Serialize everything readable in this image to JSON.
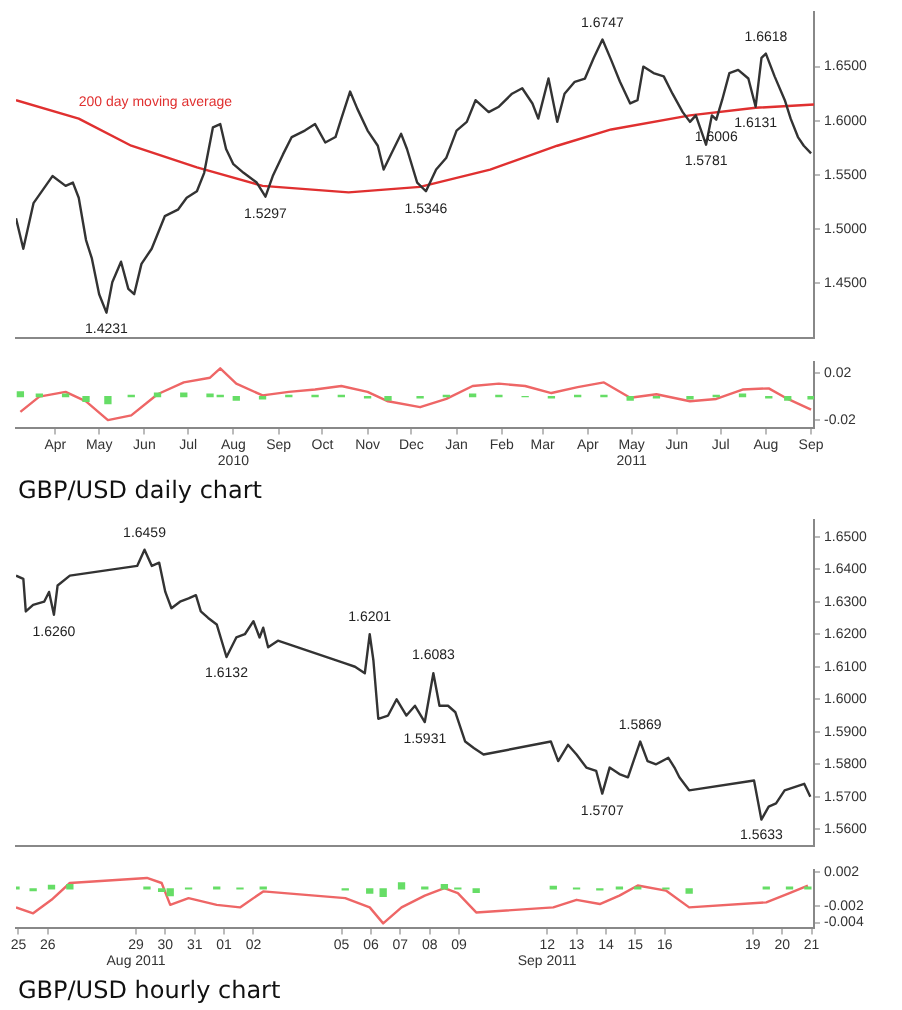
{
  "chart_data": [
    {
      "type": "line",
      "xlim": [
        "2010-03-19",
        "2011-09-17"
      ],
      "ylim": [
        1.4,
        1.7
      ],
      "tick_labels": "y",
      "yticks": [
        {
          "value": 1.45,
          "label": "1.4500"
        },
        {
          "value": 1.5,
          "label": "1.5000"
        },
        {
          "value": 1.55,
          "label": "1.5500"
        },
        {
          "value": 1.6,
          "label": "1.6000"
        },
        {
          "value": 1.65,
          "label": "1.6500"
        }
      ],
      "series": [
        {
          "color": "#333333",
          "x": [
            "2010-03-19",
            "2010-03-24",
            "2010-03-31",
            "2010-04-13",
            "2010-04-22",
            "2010-04-27",
            "2010-05-01",
            "2010-05-06",
            "2010-05-10",
            "2010-05-15",
            "2010-05-20",
            "2010-05-24",
            "2010-05-30",
            "2010-06-04",
            "2010-06-08",
            "2010-06-13",
            "2010-06-20",
            "2010-06-29",
            "2010-07-08",
            "2010-07-14",
            "2010-07-21",
            "2010-07-26",
            "2010-08-01",
            "2010-08-06",
            "2010-08-10",
            "2010-08-15",
            "2010-08-22",
            "2010-08-31",
            "2010-09-06",
            "2010-09-11",
            "2010-09-18",
            "2010-09-24",
            "2010-10-03",
            "2010-10-10",
            "2010-10-17",
            "2010-10-24",
            "2010-10-28",
            "2010-11-03",
            "2010-11-08",
            "2010-11-15",
            "2010-11-22",
            "2010-11-26",
            "2010-12-01",
            "2010-12-08",
            "2010-12-12",
            "2010-12-19",
            "2010-12-25",
            "2011-01-01",
            "2011-01-08",
            "2011-01-15",
            "2011-01-22",
            "2011-01-28",
            "2011-02-06",
            "2011-02-13",
            "2011-02-22",
            "2011-03-01",
            "2011-03-08",
            "2011-03-12",
            "2011-03-19",
            "2011-03-25",
            "2011-03-30",
            "2011-04-06",
            "2011-04-13",
            "2011-04-19",
            "2011-04-25",
            "2011-05-01",
            "2011-05-07",
            "2011-05-14",
            "2011-05-19",
            "2011-05-23",
            "2011-05-30",
            "2011-06-06",
            "2011-06-12",
            "2011-06-19",
            "2011-06-24",
            "2011-06-28",
            "2011-07-05",
            "2011-07-09",
            "2011-07-12",
            "2011-07-16",
            "2011-07-21",
            "2011-07-27",
            "2011-08-03",
            "2011-08-08",
            "2011-08-12",
            "2011-08-15",
            "2011-08-21",
            "2011-08-28",
            "2011-09-01",
            "2011-09-06",
            "2011-09-10",
            "2011-09-15"
          ],
          "values": [
            1.51,
            1.482,
            1.524,
            1.549,
            1.54,
            1.543,
            1.529,
            1.49,
            1.473,
            1.44,
            1.423,
            1.451,
            1.47,
            1.445,
            1.44,
            1.468,
            1.482,
            1.512,
            1.518,
            1.529,
            1.535,
            1.552,
            1.594,
            1.597,
            1.574,
            1.56,
            1.552,
            1.543,
            1.53,
            1.549,
            1.569,
            1.585,
            1.591,
            1.597,
            1.58,
            1.585,
            1.602,
            1.627,
            1.611,
            1.591,
            1.577,
            1.555,
            1.569,
            1.588,
            1.574,
            1.543,
            1.535,
            1.555,
            1.566,
            1.591,
            1.599,
            1.619,
            1.608,
            1.613,
            1.625,
            1.63,
            1.616,
            1.602,
            1.639,
            1.599,
            1.625,
            1.636,
            1.639,
            1.658,
            1.675,
            1.656,
            1.636,
            1.616,
            1.619,
            1.65,
            1.644,
            1.641,
            1.625,
            1.608,
            1.599,
            1.605,
            1.578,
            1.605,
            1.601,
            1.619,
            1.644,
            1.647,
            1.639,
            1.613,
            1.658,
            1.662,
            1.641,
            1.619,
            1.602,
            1.585,
            1.577,
            1.57
          ]
        },
        {
          "name": "200 day moving average",
          "color": "#e03030",
          "x": [
            "2010-03-19",
            "2010-05-01",
            "2010-06-06",
            "2010-07-21",
            "2010-09-04",
            "2010-11-02",
            "2010-12-21",
            "2011-02-07",
            "2011-03-25",
            "2011-05-01",
            "2011-06-24",
            "2011-08-08",
            "2011-09-17"
          ],
          "values": [
            1.619,
            1.602,
            1.577,
            1.557,
            1.54,
            1.534,
            1.539,
            1.555,
            1.577,
            1.592,
            1.605,
            1.612,
            1.615
          ]
        }
      ],
      "annotations": [
        {
          "text": "1.4231",
          "x": "2010-05-20",
          "y": 1.4231
        },
        {
          "text": "1.5297",
          "x": "2010-09-06",
          "y": 1.5297
        },
        {
          "text": "1.5346",
          "x": "2010-12-25",
          "y": 1.5346
        },
        {
          "text": "1.6747",
          "x": "2011-04-25",
          "y": 1.6747
        },
        {
          "text": "1.5781",
          "x": "2011-07-05",
          "y": 1.5781
        },
        {
          "text": "1.6006",
          "x": "2011-07-12",
          "y": 1.6006
        },
        {
          "text": "1.6131",
          "x": "2011-08-08",
          "y": 1.6131
        },
        {
          "text": "1.6618",
          "x": "2011-08-15",
          "y": 1.6618
        }
      ]
    },
    {
      "type": "line",
      "title": "GBP/USD daily chart",
      "xlim": [
        "2010-03-19",
        "2011-09-17"
      ],
      "ylim": [
        -0.027,
        0.029
      ],
      "xticks": [
        {
          "value": "2010-04-15",
          "label": "Apr"
        },
        {
          "value": "2010-05-15",
          "label": "May"
        },
        {
          "value": "2010-06-15",
          "label": "Jun"
        },
        {
          "value": "2010-07-15",
          "label": "Jul"
        },
        {
          "value": "2010-08-15",
          "label": "Aug\n2010"
        },
        {
          "value": "2010-09-15",
          "label": "Sep"
        },
        {
          "value": "2010-10-15",
          "label": "Oct"
        },
        {
          "value": "2010-11-15",
          "label": "Nov"
        },
        {
          "value": "2010-12-15",
          "label": "Dec"
        },
        {
          "value": "2011-01-15",
          "label": "Jan"
        },
        {
          "value": "2011-02-15",
          "label": "Feb"
        },
        {
          "value": "2011-03-15",
          "label": "Mar"
        },
        {
          "value": "2011-04-15",
          "label": "Apr"
        },
        {
          "value": "2011-05-15",
          "label": "May\n2011"
        },
        {
          "value": "2011-06-15",
          "label": "Jun"
        },
        {
          "value": "2011-07-15",
          "label": "Jul"
        },
        {
          "value": "2011-08-15",
          "label": "Aug"
        },
        {
          "value": "2011-09-15",
          "label": "Sep"
        }
      ],
      "yticks": [
        0.02,
        -0.02
      ],
      "series": [
        {
          "type": "bar",
          "color": "#66dd66",
          "x": [
            "2010-03-22",
            "2010-04-04",
            "2010-04-22",
            "2010-05-06",
            "2010-05-21",
            "2010-06-06",
            "2010-06-24",
            "2010-07-12",
            "2010-07-30",
            "2010-08-06",
            "2010-08-17",
            "2010-09-04",
            "2010-09-22",
            "2010-10-10",
            "2010-10-28",
            "2010-11-15",
            "2010-11-29",
            "2010-12-21",
            "2011-01-08",
            "2011-01-26",
            "2011-02-13",
            "2011-03-03",
            "2011-03-21",
            "2011-04-08",
            "2011-04-26",
            "2011-05-14",
            "2011-06-01",
            "2011-06-24",
            "2011-07-12",
            "2011-07-30",
            "2011-08-17",
            "2011-08-30",
            "2011-09-15"
          ],
          "values": [
            0.004,
            0.002,
            0.002,
            -0.004,
            -0.006,
            0.001,
            0.003,
            0.003,
            0.002,
            0.001,
            -0.003,
            -0.002,
            0.001,
            0.001,
            0.001,
            -0.001,
            -0.003,
            -0.001,
            0.001,
            0.002,
            0.001,
            0,
            -0.001,
            0.001,
            0.001,
            -0.003,
            -0.001,
            -0.002,
            0.001,
            0.002,
            -0.001,
            -0.003,
            -0.002
          ]
        },
        {
          "color": "#ee6666",
          "x": [
            "2010-03-22",
            "2010-04-04",
            "2010-04-22",
            "2010-05-06",
            "2010-05-21",
            "2010-06-06",
            "2010-06-24",
            "2010-07-12",
            "2010-07-30",
            "2010-08-06",
            "2010-08-17",
            "2010-09-04",
            "2010-09-22",
            "2010-10-10",
            "2010-10-28",
            "2010-11-15",
            "2010-11-29",
            "2010-12-21",
            "2011-01-08",
            "2011-01-26",
            "2011-02-13",
            "2011-03-03",
            "2011-03-21",
            "2011-04-08",
            "2011-04-26",
            "2011-05-14",
            "2011-06-01",
            "2011-06-24",
            "2011-07-12",
            "2011-07-30",
            "2011-08-17",
            "2011-08-30",
            "2011-09-15"
          ],
          "values": [
            -0.013,
            0,
            0.004,
            -0.004,
            -0.02,
            -0.016,
            0.002,
            0.012,
            0.016,
            0.024,
            0.011,
            0.001,
            0.004,
            0.006,
            0.009,
            0.004,
            -0.004,
            -0.009,
            -0.002,
            0.009,
            0.011,
            0.009,
            0.003,
            0.008,
            0.012,
            -0.001,
            0.002,
            -0.004,
            -0.002,
            0.006,
            0.007,
            -0.002,
            -0.011
          ]
        }
      ]
    },
    {
      "type": "line",
      "xlim": [
        "2011-08-24T22:00",
        "2011-09-21T02:00"
      ],
      "ylim": [
        1.555,
        1.655
      ],
      "tick_labels": "y",
      "yticks": [
        {
          "value": 1.56,
          "label": "1.5600"
        },
        {
          "value": 1.57,
          "label": "1.5700"
        },
        {
          "value": 1.58,
          "label": "1.5800"
        },
        {
          "value": 1.59,
          "label": "1.5900"
        },
        {
          "value": 1.6,
          "label": "1.6000"
        },
        {
          "value": 1.61,
          "label": "1.6100"
        },
        {
          "value": 1.62,
          "label": "1.6200"
        },
        {
          "value": 1.63,
          "label": "1.6300"
        },
        {
          "value": 1.64,
          "label": "1.6400"
        },
        {
          "value": 1.65,
          "label": "1.6500"
        }
      ],
      "series": [
        {
          "color": "#333333",
          "x": [
            "2011-08-24T22:00",
            "2011-08-25T04:00",
            "2011-08-25T06:00",
            "2011-08-25T12:00",
            "2011-08-25T21:00",
            "2011-08-26T01:00",
            "2011-08-26T05:00",
            "2011-08-26T08:00",
            "2011-08-26T18:00",
            "2011-08-29T01:00",
            "2011-08-29T07:00",
            "2011-08-29T13:00",
            "2011-08-29T19:00",
            "2011-08-30T00:00",
            "2011-08-30T05:00",
            "2011-08-30T12:00",
            "2011-08-30T19:00",
            "2011-08-31T01:00",
            "2011-08-31T05:00",
            "2011-08-31T11:00",
            "2011-08-31T18:00",
            "2011-09-01T02:00",
            "2011-09-01T10:00",
            "2011-09-01T17:00",
            "2011-09-02T00:00",
            "2011-09-02T05:00",
            "2011-09-02T08:00",
            "2011-09-02T12:00",
            "2011-09-02T20:00",
            "2011-09-05T03:00",
            "2011-09-05T11:00",
            "2011-09-05T19:00",
            "2011-09-05T23:00",
            "2011-09-06T02:00",
            "2011-09-06T06:00",
            "2011-09-06T14:00",
            "2011-09-06T21:00",
            "2011-09-07T05:00",
            "2011-09-07T12:00",
            "2011-09-07T20:00",
            "2011-09-08T03:00",
            "2011-09-08T08:00",
            "2011-09-08T15:00",
            "2011-09-08T21:00",
            "2011-09-09T05:00",
            "2011-09-09T12:00",
            "2011-09-09T20:00",
            "2011-09-12T03:00",
            "2011-09-12T09:00",
            "2011-09-12T17:00",
            "2011-09-13T00:00",
            "2011-09-13T08:00",
            "2011-09-13T16:00",
            "2011-09-13T21:00",
            "2011-09-14T03:00",
            "2011-09-14T11:00",
            "2011-09-14T18:00",
            "2011-09-15T04:00",
            "2011-09-15T10:00",
            "2011-09-15T17:00",
            "2011-09-16T03:00",
            "2011-09-16T08:00",
            "2011-09-16T12:00",
            "2011-09-16T20:00",
            "2011-09-19T01:00",
            "2011-09-19T07:00",
            "2011-09-19T13:00",
            "2011-09-19T19:00",
            "2011-09-20T02:00",
            "2011-09-20T10:00",
            "2011-09-20T18:00",
            "2011-09-20T23:00"
          ],
          "values": [
            1.638,
            1.637,
            1.627,
            1.629,
            1.63,
            1.633,
            1.626,
            1.635,
            1.638,
            1.641,
            1.646,
            1.641,
            1.642,
            1.633,
            1.628,
            1.63,
            1.631,
            1.632,
            1.627,
            1.625,
            1.623,
            1.613,
            1.619,
            1.62,
            1.624,
            1.619,
            1.622,
            1.616,
            1.618,
            1.611,
            1.61,
            1.608,
            1.62,
            1.612,
            1.594,
            1.595,
            1.6,
            1.595,
            1.598,
            1.593,
            1.608,
            1.598,
            1.598,
            1.596,
            1.587,
            1.585,
            1.583,
            1.587,
            1.581,
            1.586,
            1.583,
            1.579,
            1.578,
            1.571,
            1.579,
            1.577,
            1.576,
            1.587,
            1.581,
            1.58,
            1.582,
            1.579,
            1.576,
            1.572,
            1.575,
            1.563,
            1.567,
            1.568,
            1.572,
            1.573,
            1.574,
            1.57
          ]
        }
      ],
      "annotations": [
        {
          "text": "1.6459",
          "x": "2011-08-29T07:00",
          "y": 1.6459
        },
        {
          "text": "1.6260",
          "x": "2011-08-26T05:00",
          "y": 1.626
        },
        {
          "text": "1.6132",
          "x": "2011-09-01T02:00",
          "y": 1.6132
        },
        {
          "text": "1.6201",
          "x": "2011-09-05T23:00",
          "y": 1.6201
        },
        {
          "text": "1.5931",
          "x": "2011-09-07T20:00",
          "y": 1.5931
        },
        {
          "text": "1.6083",
          "x": "2011-09-08T03:00",
          "y": 1.6083
        },
        {
          "text": "1.5707",
          "x": "2011-09-13T21:00",
          "y": 1.5707
        },
        {
          "text": "1.5869",
          "x": "2011-09-15T04:00",
          "y": 1.5869
        },
        {
          "text": "1.5633",
          "x": "2011-09-19T07:00",
          "y": 1.5633
        }
      ]
    },
    {
      "type": "line",
      "title": "GBP/USD hourly chart",
      "xlim": [
        "2011-08-24T22:00",
        "2011-09-21T02:00"
      ],
      "ylim": [
        -0.0047,
        0.0022
      ],
      "xticks": [
        {
          "value": "2011-08-25",
          "label": "25"
        },
        {
          "value": "2011-08-26",
          "label": "26"
        },
        {
          "value": "2011-08-29",
          "label": "29\nAug 2011"
        },
        {
          "value": "2011-08-30",
          "label": "30"
        },
        {
          "value": "2011-08-31",
          "label": "31"
        },
        {
          "value": "2011-09-01",
          "label": "01"
        },
        {
          "value": "2011-09-02",
          "label": "02"
        },
        {
          "value": "2011-09-05",
          "label": "05"
        },
        {
          "value": "2011-09-06",
          "label": "06"
        },
        {
          "value": "2011-09-07",
          "label": "07"
        },
        {
          "value": "2011-09-08",
          "label": "08"
        },
        {
          "value": "2011-09-09",
          "label": "09"
        },
        {
          "value": "2011-09-12",
          "label": "12\nSep 2011"
        },
        {
          "value": "2011-09-13",
          "label": "13"
        },
        {
          "value": "2011-09-14",
          "label": "14"
        },
        {
          "value": "2011-09-15",
          "label": "15"
        },
        {
          "value": "2011-09-16",
          "label": "16"
        },
        {
          "value": "2011-09-19",
          "label": "19"
        },
        {
          "value": "2011-09-20",
          "label": "20"
        },
        {
          "value": "2011-09-21",
          "label": "21"
        }
      ],
      "yticks": [
        0.002,
        -0.002,
        -0.004
      ],
      "series": [
        {
          "type": "bar",
          "color": "#66dd66",
          "x": [
            "2011-08-24T22:00",
            "2011-08-25T12:00",
            "2011-08-26T03:00",
            "2011-08-26T18:00",
            "2011-08-29T09:00",
            "2011-08-29T21:00",
            "2011-08-30T04:00",
            "2011-08-30T19:00",
            "2011-08-31T18:00",
            "2011-09-01T13:00",
            "2011-09-02T08:00",
            "2011-09-05T03:00",
            "2011-09-05T23:00",
            "2011-09-06T10:00",
            "2011-09-07T01:00",
            "2011-09-07T20:00",
            "2011-09-08T12:00",
            "2011-09-08T23:00",
            "2011-09-09T14:00",
            "2011-09-12T05:00",
            "2011-09-13T00:00",
            "2011-09-13T19:00",
            "2011-09-14T11:00",
            "2011-09-15T02:00",
            "2011-09-16T01:00",
            "2011-09-16T20:00",
            "2011-09-19T11:00",
            "2011-09-20T06:00",
            "2011-09-20T21:00"
          ],
          "values": [
            0.0002,
            -0.0002,
            0.0004,
            0.0005,
            0.0002,
            -0.0003,
            -0.0008,
            0.0001,
            0.0002,
            0.0001,
            0.0002,
            -0.0001,
            -0.0005,
            -0.0009,
            0.0007,
            0.0002,
            0.0005,
            0.0001,
            -0.0004,
            0.0003,
            0.0001,
            -0.0001,
            0.0002,
            0.0002,
            0.0001,
            -0.0005,
            0.0002,
            0.0002,
            0.0002
          ]
        },
        {
          "color": "#ee6666",
          "x": [
            "2011-08-24T22:00",
            "2011-08-25T12:00",
            "2011-08-26T03:00",
            "2011-08-26T18:00",
            "2011-08-29T09:00",
            "2011-08-29T21:00",
            "2011-08-30T04:00",
            "2011-08-30T19:00",
            "2011-08-31T18:00",
            "2011-09-01T13:00",
            "2011-09-02T08:00",
            "2011-09-05T03:00",
            "2011-09-05T23:00",
            "2011-09-06T10:00",
            "2011-09-07T01:00",
            "2011-09-07T20:00",
            "2011-09-08T12:00",
            "2011-09-08T23:00",
            "2011-09-09T14:00",
            "2011-09-12T05:00",
            "2011-09-13T00:00",
            "2011-09-13T19:00",
            "2011-09-14T11:00",
            "2011-09-15T02:00",
            "2011-09-16T01:00",
            "2011-09-16T20:00",
            "2011-09-19T11:00",
            "2011-09-20T06:00",
            "2011-09-20T21:00"
          ],
          "values": [
            -0.0022,
            -0.0029,
            -0.0013,
            0.0007,
            0.0013,
            0.0007,
            -0.0019,
            -0.0011,
            -0.0019,
            -0.0022,
            -0.0003,
            -0.0011,
            -0.0022,
            -0.0041,
            -0.0022,
            -0.0008,
            0.0001,
            -0.0005,
            -0.0028,
            -0.0022,
            -0.0013,
            -0.0018,
            -0.0008,
            0.0004,
            -0.0002,
            -0.0022,
            -0.0016,
            -0.0005,
            0.0004
          ]
        }
      ]
    }
  ]
}
